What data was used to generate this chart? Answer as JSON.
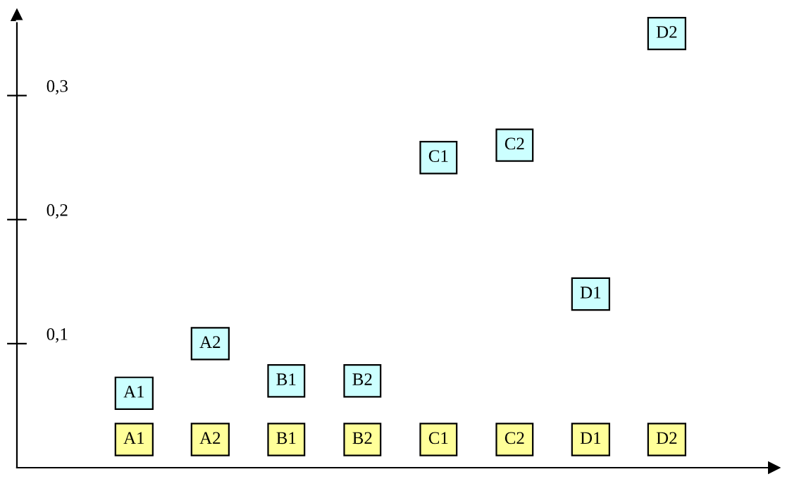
{
  "chart_data": {
    "type": "scatter",
    "categories": [
      "A1",
      "A2",
      "B1",
      "B2",
      "C1",
      "C2",
      "D1",
      "D2"
    ],
    "series": [
      {
        "color": "#ccffff",
        "values": [
          0.06,
          0.1,
          0.07,
          0.07,
          0.25,
          0.26,
          0.14,
          0.35
        ],
        "value_labels": [
          "A1",
          "A2",
          "B1",
          "B2",
          "C1",
          "C2",
          "D1",
          "D2"
        ]
      }
    ],
    "ylim": [
      0,
      0.36
    ],
    "yticks": [
      {
        "value": 0.1,
        "label": "0,1"
      },
      {
        "value": 0.2,
        "label": "0,2"
      },
      {
        "value": 0.3,
        "label": "0,3"
      }
    ],
    "marker": "square",
    "grid": false,
    "legend": false
  }
}
